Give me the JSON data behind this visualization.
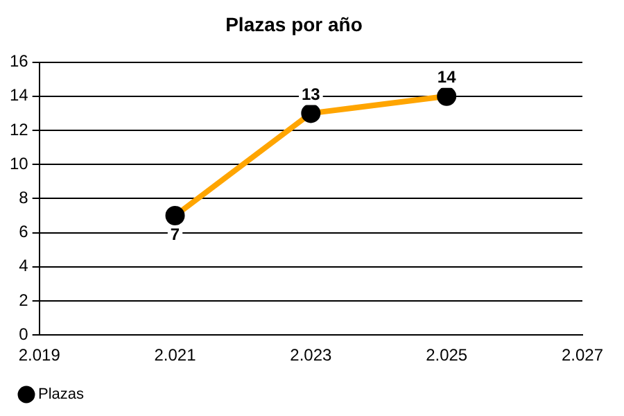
{
  "chart_data": {
    "type": "line",
    "title": "Plazas por año",
    "x": [
      2021,
      2023,
      2025
    ],
    "series": [
      {
        "name": "Plazas",
        "color": "#ffa500",
        "values": [
          7,
          13,
          14
        ]
      }
    ],
    "xlim": [
      2019,
      2027
    ],
    "xticks": [
      {
        "value": 2019,
        "label": "2.019"
      },
      {
        "value": 2021,
        "label": "2.021"
      },
      {
        "value": 2023,
        "label": "2.023"
      },
      {
        "value": 2025,
        "label": "2.025"
      },
      {
        "value": 2027,
        "label": "2.027"
      }
    ],
    "ylim": [
      0,
      16
    ],
    "yticks": [
      0,
      2,
      4,
      6,
      8,
      10,
      12,
      14,
      16
    ],
    "grid": "y",
    "legend": "bottom left",
    "marker": "circle",
    "line_style": "solid",
    "data_labels": true
  }
}
